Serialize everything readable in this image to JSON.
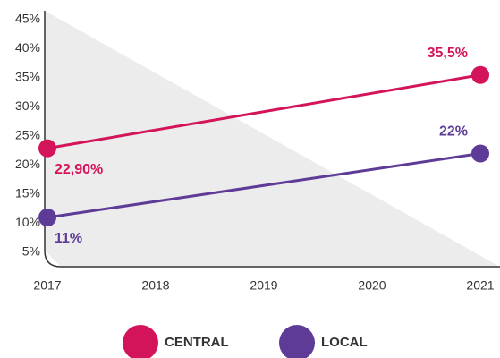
{
  "chart_data": {
    "type": "line",
    "x": [
      2017,
      2021
    ],
    "xlim": [
      2017,
      2021
    ],
    "xticks": [
      2017,
      2018,
      2019,
      2020,
      2021
    ],
    "ylim": [
      2.5,
      46.5
    ],
    "yticks": [
      {
        "value": 5,
        "label": "5%"
      },
      {
        "value": 10,
        "label": "10%"
      },
      {
        "value": 15,
        "label": "15%"
      },
      {
        "value": 20,
        "label": "20%"
      },
      {
        "value": 25,
        "label": "25%"
      },
      {
        "value": 30,
        "label": "30%"
      },
      {
        "value": 35,
        "label": "35%"
      },
      {
        "value": 40,
        "label": "40%"
      },
      {
        "value": 45,
        "label": "45%"
      }
    ],
    "series": [
      {
        "name": "CENTRAL",
        "color": "#d4145a",
        "values": [
          22.9,
          35.5
        ],
        "value_labels": [
          "22,90%",
          "35,5%"
        ]
      },
      {
        "name": "LOCAL",
        "color": "#5e3b97",
        "values": [
          11,
          22
        ],
        "value_labels": [
          "11%",
          "22%"
        ]
      }
    ]
  }
}
